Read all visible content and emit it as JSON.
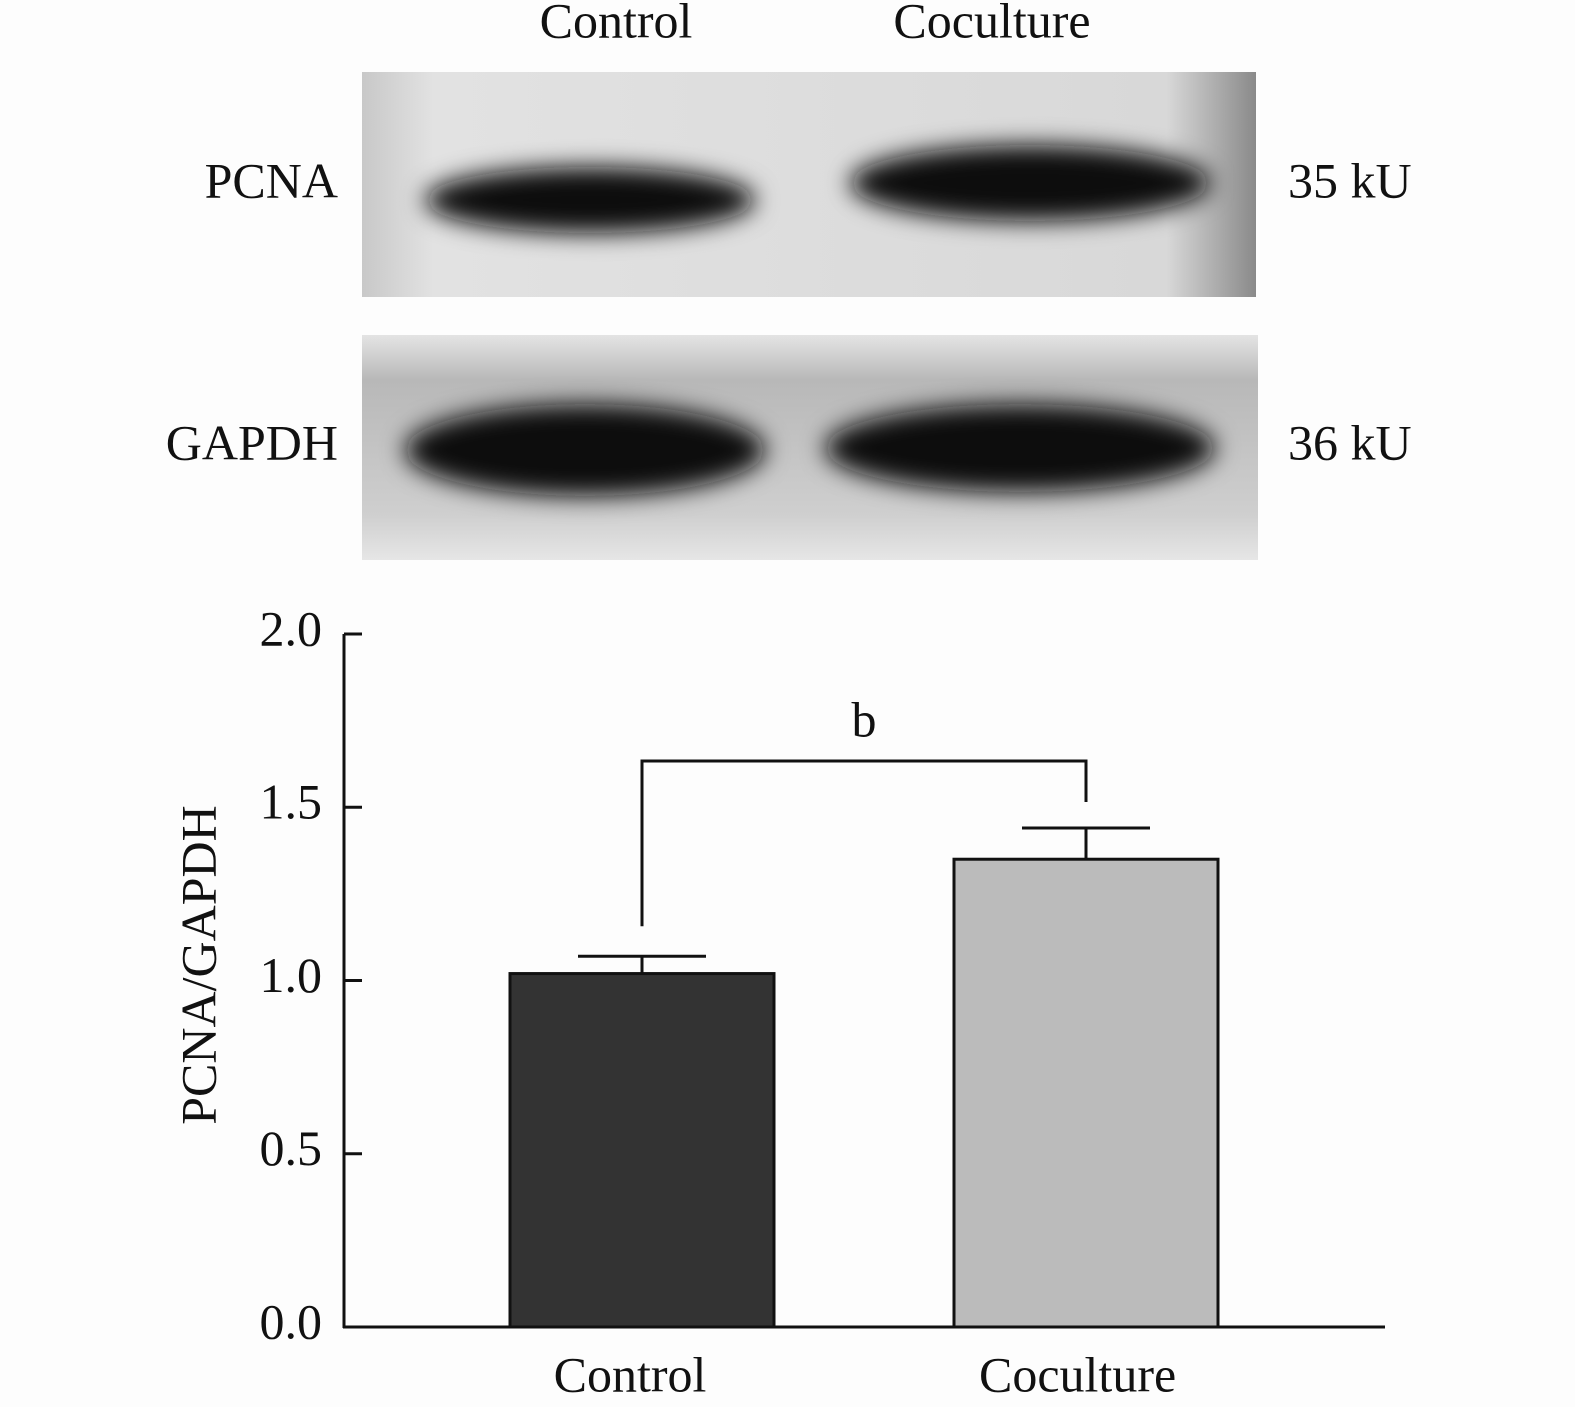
{
  "blot": {
    "lanes": [
      "Control",
      "Coculture"
    ],
    "rows": [
      {
        "protein": "PCNA",
        "size": "35 kU"
      },
      {
        "protein": "GAPDH",
        "size": "36 kU"
      }
    ]
  },
  "chart_data": {
    "type": "bar",
    "ylabel": "PCNA/GAPDH",
    "categories": [
      "Control",
      "Coculture"
    ],
    "values": [
      1.02,
      1.35
    ],
    "errors": [
      0.05,
      0.09
    ],
    "colors": [
      "#333333",
      "#bbbbbb"
    ],
    "annotation": "b",
    "ylim": [
      0,
      2.0
    ],
    "yticks": [
      {
        "value": 0,
        "label": "0.0"
      },
      0.5,
      {
        "value": 1,
        "label": "1.0"
      },
      1.5,
      {
        "value": 2,
        "label": "2.0"
      }
    ]
  }
}
